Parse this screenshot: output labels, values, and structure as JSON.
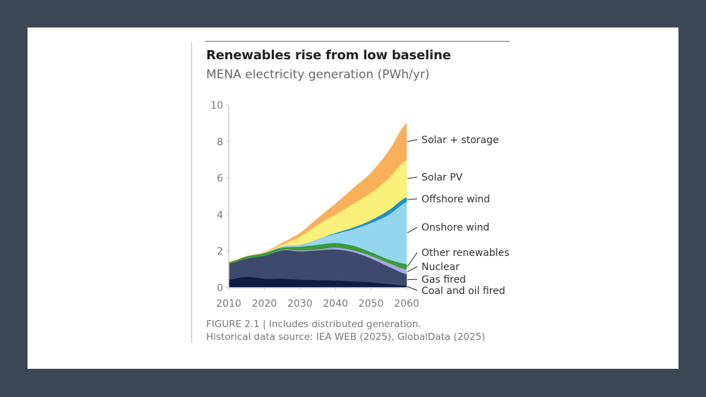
{
  "title": "Renewables rise from low baseline",
  "subtitle": "MENA electricity generation (PWh/yr)",
  "caption": {
    "line1": "FIGURE 2.1 | Includes distributed generation.",
    "line2": "Historical data source: IEA WEB (2025), GlobalData (2025)"
  },
  "chart_data": {
    "type": "area",
    "stacked": true,
    "title": "Renewables rise from low baseline",
    "subtitle": "MENA electricity generation (PWh/yr)",
    "xlabel": "",
    "ylabel": "",
    "xlim": [
      2010,
      2060
    ],
    "ylim": [
      0,
      10
    ],
    "x_ticks": [
      "2010",
      "2020",
      "2030",
      "2040",
      "2050",
      "2060"
    ],
    "y_ticks": [
      "0",
      "2",
      "4",
      "6",
      "8",
      "10"
    ],
    "grid": false,
    "legend": "direct labels right",
    "x": [
      2010,
      2015,
      2020,
      2025,
      2030,
      2035,
      2040,
      2045,
      2050,
      2055,
      2060
    ],
    "series": [
      {
        "name": "Coal and oil fired",
        "color": "#0f1d45",
        "values": [
          0.45,
          0.6,
          0.5,
          0.5,
          0.45,
          0.42,
          0.4,
          0.35,
          0.3,
          0.2,
          0.12
        ]
      },
      {
        "name": "Gas fired",
        "color": "#3d4a6d",
        "values": [
          0.88,
          1.0,
          1.25,
          1.55,
          1.55,
          1.63,
          1.7,
          1.6,
          1.3,
          0.95,
          0.63
        ]
      },
      {
        "name": "Nuclear",
        "color": "#a9a8e0",
        "values": [
          0,
          0,
          0,
          0.03,
          0.05,
          0.05,
          0.1,
          0.1,
          0.15,
          0.2,
          0.25
        ]
      },
      {
        "name": "Other renewables",
        "color": "#3a9a3a",
        "values": [
          0.07,
          0.12,
          0.15,
          0.12,
          0.2,
          0.25,
          0.25,
          0.25,
          0.2,
          0.2,
          0.3
        ]
      },
      {
        "name": "Onshore wind",
        "color": "#94d6ee",
        "values": [
          0,
          0,
          0,
          0.05,
          0.1,
          0.3,
          0.5,
          0.9,
          1.6,
          2.45,
          3.4
        ]
      },
      {
        "name": "Offshore wind",
        "color": "#1a8fc8",
        "values": [
          0,
          0,
          0,
          0,
          0,
          0,
          0.05,
          0.1,
          0.15,
          0.25,
          0.25
        ]
      },
      {
        "name": "Solar PV",
        "color": "#fbf07a",
        "values": [
          0,
          0,
          0.03,
          0.1,
          0.45,
          0.8,
          1.0,
          1.3,
          1.5,
          1.75,
          2.05
        ]
      },
      {
        "name": "Solar + storage",
        "color": "#f8b15a",
        "values": [
          0,
          0,
          0.02,
          0.1,
          0.2,
          0.35,
          0.6,
          0.85,
          1.1,
          1.5,
          2.0
        ]
      }
    ]
  }
}
